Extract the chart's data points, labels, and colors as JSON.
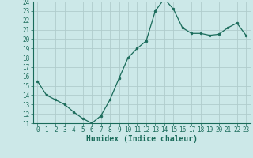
{
  "xlabel": "Humidex (Indice chaleur)",
  "x": [
    0,
    1,
    2,
    3,
    4,
    5,
    6,
    7,
    8,
    9,
    10,
    11,
    12,
    13,
    14,
    15,
    16,
    17,
    18,
    19,
    20,
    21,
    22,
    23
  ],
  "y": [
    15.5,
    14.0,
    13.5,
    13.0,
    12.2,
    11.5,
    11.0,
    11.8,
    13.5,
    15.8,
    18.0,
    19.0,
    19.8,
    23.0,
    24.3,
    23.2,
    21.2,
    20.6,
    20.6,
    20.4,
    20.5,
    21.2,
    21.7,
    20.4
  ],
  "line_color": "#1a6b5a",
  "marker_color": "#1a6b5a",
  "bg_color": "#cce8e8",
  "grid_color": "#b0cccc",
  "ylim": [
    11,
    24
  ],
  "xlim": [
    -0.5,
    23.5
  ],
  "yticks": [
    11,
    12,
    13,
    14,
    15,
    16,
    17,
    18,
    19,
    20,
    21,
    22,
    23,
    24
  ],
  "xticks": [
    0,
    1,
    2,
    3,
    4,
    5,
    6,
    7,
    8,
    9,
    10,
    11,
    12,
    13,
    14,
    15,
    16,
    17,
    18,
    19,
    20,
    21,
    22,
    23
  ],
  "tick_label_fontsize": 5.5,
  "xlabel_fontsize": 7.0
}
